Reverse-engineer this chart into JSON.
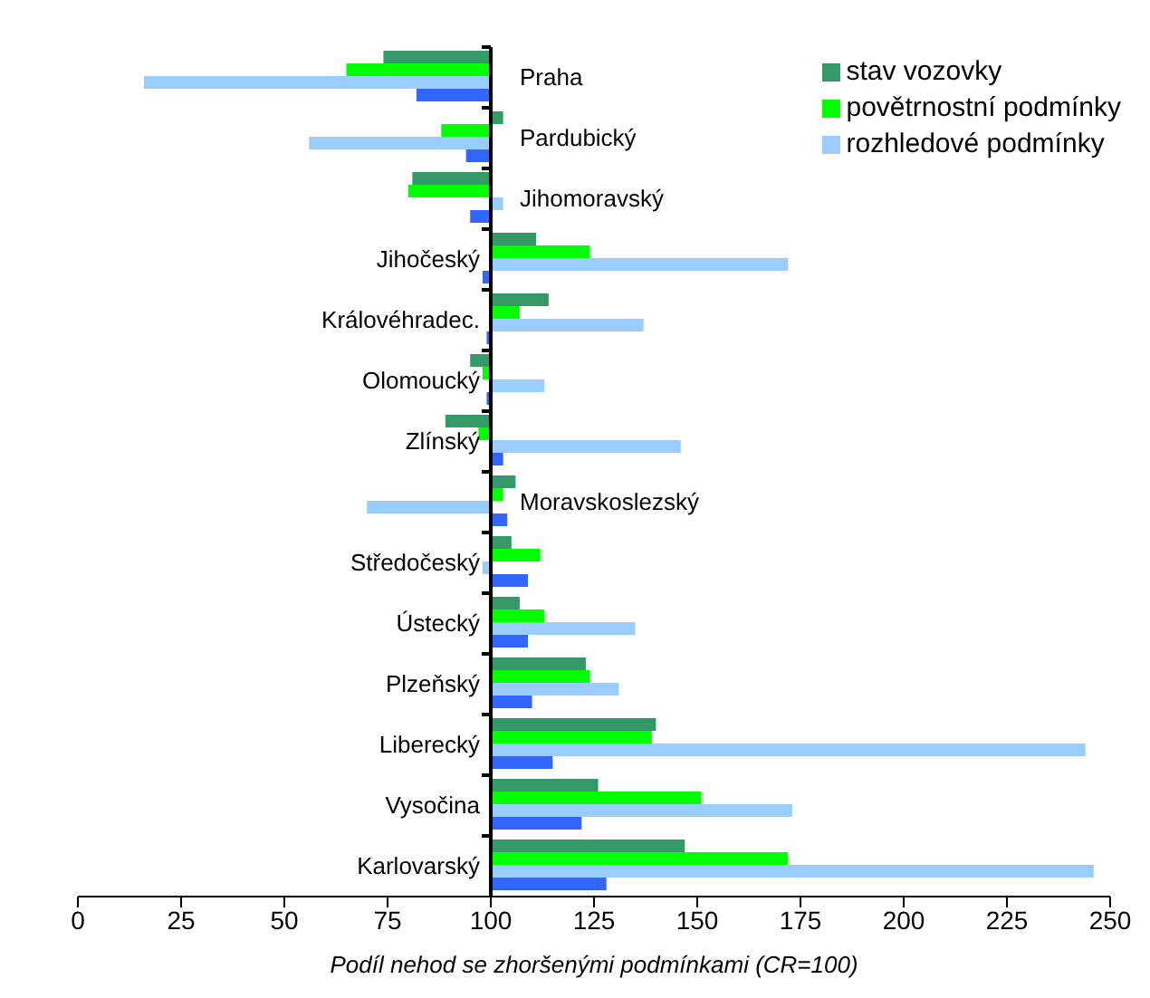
{
  "chart_data": {
    "type": "bar",
    "orientation": "horizontal",
    "xlabel": "Podíl nehod se zhoršenými podmínkami (CR=100)",
    "categories": [
      "Praha",
      "Pardubický",
      "Jihomoravský",
      "Jihočeský",
      "Královéhradec.",
      "Olomoucký",
      "Zlínský",
      "Moravskoslezský",
      "Středočeský",
      "Ústecký",
      "Plzeňský",
      "Liberecký",
      "Vysočina",
      "Karlovarský"
    ],
    "series": [
      {
        "name": "stav vozovky",
        "color": "#339966",
        "base": [
          100,
          100,
          100,
          100,
          100,
          100,
          100,
          100,
          100,
          100,
          100,
          100,
          100,
          100
        ],
        "values": [
          -26,
          3,
          -19,
          11,
          14,
          -5,
          -11,
          6,
          5,
          7,
          23,
          40,
          26,
          47
        ]
      },
      {
        "name": "povětrnostní podmínky",
        "color": "#00ff00",
        "base": [
          100,
          100,
          100,
          100,
          100,
          100,
          100,
          100,
          100,
          100,
          100,
          100,
          100,
          100
        ],
        "values": [
          -35,
          -12,
          -20,
          24,
          7,
          -2,
          -3,
          3,
          12,
          13,
          24,
          39,
          51,
          72
        ]
      },
      {
        "name": "rozhledové podmínky",
        "color": "#99ccff",
        "base": [
          100,
          100,
          100,
          100,
          100,
          100,
          100,
          100,
          100,
          100,
          100,
          100,
          100,
          100
        ],
        "values": [
          -84,
          -44,
          3,
          72,
          37,
          13,
          46,
          -30,
          -2,
          35,
          31,
          144,
          73,
          146
        ]
      },
      {
        "color": "#3366ff",
        "base": [
          100,
          100,
          100,
          100,
          100,
          100,
          100,
          100,
          100,
          100,
          100,
          100,
          100,
          100
        ],
        "values": [
          -18,
          -6,
          -5,
          -2,
          -1,
          -1,
          3,
          4,
          9,
          9,
          10,
          15,
          22,
          28
        ]
      }
    ],
    "xlim": [
      0,
      250
    ],
    "xticks": [
      0,
      25,
      50,
      75,
      100,
      125,
      150,
      175,
      200,
      225,
      250
    ],
    "legend": "top right",
    "grid": false
  }
}
